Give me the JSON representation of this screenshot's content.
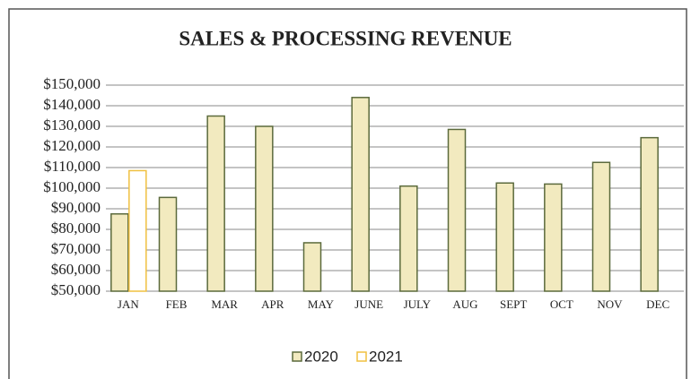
{
  "chart_data": {
    "type": "bar",
    "title": "SALES & PROCESSING REVENUE",
    "categories": [
      "JAN",
      "FEB",
      "MAR",
      "APR",
      "MAY",
      "JUNE",
      "JULY",
      "AUG",
      "SEPT",
      "OCT",
      "NOV",
      "DEC"
    ],
    "series": [
      {
        "name": "2020",
        "color": "#f2eabf",
        "values": [
          87500,
          95500,
          135000,
          130000,
          73500,
          144000,
          101000,
          128500,
          102500,
          102000,
          112500,
          124500
        ]
      },
      {
        "name": "2021",
        "color": "#ffffff",
        "values": [
          108500,
          null,
          null,
          null,
          null,
          null,
          null,
          null,
          null,
          null,
          null,
          null
        ]
      }
    ],
    "ylim": [
      50000,
      150000
    ],
    "yticks": [
      {
        "value": 50000,
        "label": "$50,000"
      },
      {
        "value": 60000,
        "label": "$60,000"
      },
      {
        "value": 70000,
        "label": "$70,000"
      },
      {
        "value": 80000,
        "label": "$80,000"
      },
      {
        "value": 90000,
        "label": "$90,000"
      },
      {
        "value": 100000,
        "label": "$100,000"
      },
      {
        "value": 110000,
        "label": "$110,000"
      },
      {
        "value": 120000,
        "label": "$120,000"
      },
      {
        "value": 130000,
        "label": "$130,000"
      },
      {
        "value": 140000,
        "label": "$140,000"
      },
      {
        "value": 150000,
        "label": "$150,000"
      }
    ],
    "grid": true,
    "legend": "bottom"
  }
}
